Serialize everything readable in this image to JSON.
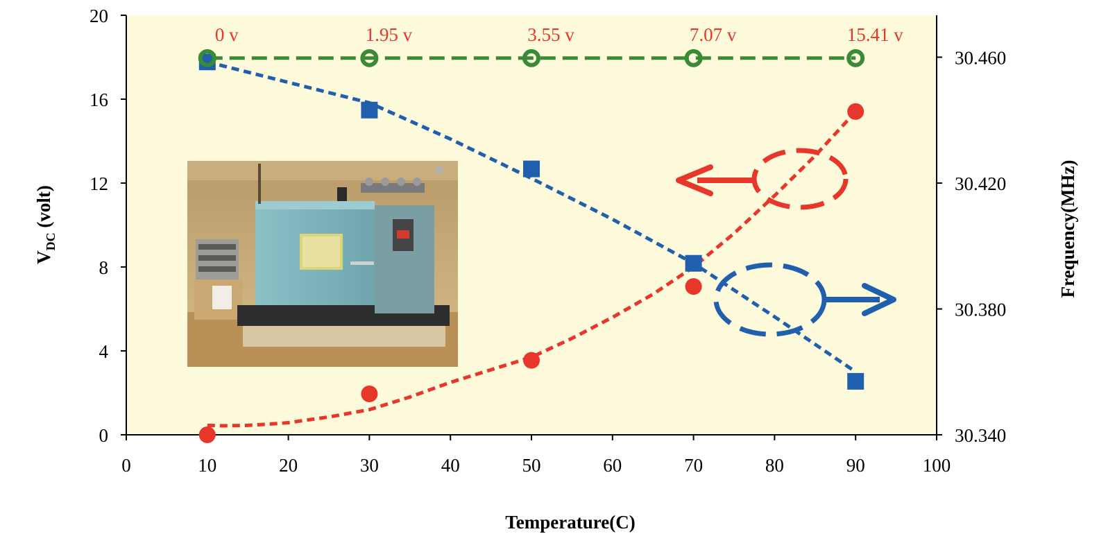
{
  "chart_data": {
    "type": "scatter",
    "title": "",
    "xlabel": "Temperature(C)",
    "ylabel_left": {
      "main": "V",
      "sub": "DC",
      "rest": " (volt)"
    },
    "ylabel_right": "Frequency(MHz)",
    "xlim": [
      0,
      100
    ],
    "ylim_left": [
      0,
      20
    ],
    "ylim_right": [
      30.34,
      30.47333
    ],
    "x_ticks": [
      "0",
      "10",
      "20",
      "30",
      "40",
      "50",
      "60",
      "70",
      "80",
      "90",
      "100"
    ],
    "y_ticks_left": [
      "0",
      "4",
      "8",
      "12",
      "16",
      "20"
    ],
    "y_ticks_right": [
      "30.340",
      "30.380",
      "30.420",
      "30.460"
    ],
    "legend": "none",
    "grid": false,
    "series": [
      {
        "axis": "left",
        "marker": "circle",
        "color": "#e8362a",
        "x": [
          10,
          30,
          50,
          70,
          90
        ],
        "y": [
          0,
          1.95,
          3.55,
          7.07,
          15.41
        ],
        "trend_x": [
          10,
          12,
          15,
          18,
          20,
          25,
          30,
          35,
          40,
          45,
          50,
          55,
          60,
          65,
          70,
          75,
          80,
          85,
          90
        ],
        "trend_y": [
          0.45,
          0.43,
          0.45,
          0.52,
          0.58,
          0.85,
          1.2,
          1.8,
          2.5,
          3.1,
          3.7,
          4.6,
          5.6,
          6.7,
          8.0,
          9.6,
          11.4,
          13.3,
          15.4
        ]
      },
      {
        "axis": "right",
        "marker": "square",
        "color": "#1f5fae",
        "x": [
          10,
          30,
          50,
          70,
          90
        ],
        "y": [
          30.4585,
          30.4432,
          30.4245,
          30.3945,
          30.357
        ],
        "trend_x": [
          10,
          20,
          30,
          40,
          50,
          60,
          70,
          80,
          90
        ],
        "trend_y": [
          30.4585,
          30.452,
          30.4455,
          30.434,
          30.4215,
          30.4085,
          30.3945,
          30.3775,
          30.36
        ]
      },
      {
        "axis": "right",
        "marker": "circle-open",
        "color": "#3a8a36",
        "x": [
          10,
          30,
          50,
          70,
          90
        ],
        "y": [
          30.4597,
          30.4597,
          30.4597,
          30.4597,
          30.4597
        ],
        "trend_x": [
          10,
          90
        ],
        "trend_y": [
          30.4597,
          30.4597
        ]
      }
    ],
    "annotations": {
      "voltage_labels": [
        {
          "x": 10,
          "text": "0 v"
        },
        {
          "x": 30,
          "text": "1.95 v"
        },
        {
          "x": 50,
          "text": "3.55 v"
        },
        {
          "x": 70,
          "text": "7.07 v"
        },
        {
          "x": 90,
          "text": "15.41 v"
        }
      ]
    },
    "inset_photo": "temperature-chamber-photo"
  },
  "colors": {
    "plot_background": "#fdfbdb",
    "red": "#e8362a",
    "blue": "#1f5fae",
    "green": "#3a8a36"
  }
}
